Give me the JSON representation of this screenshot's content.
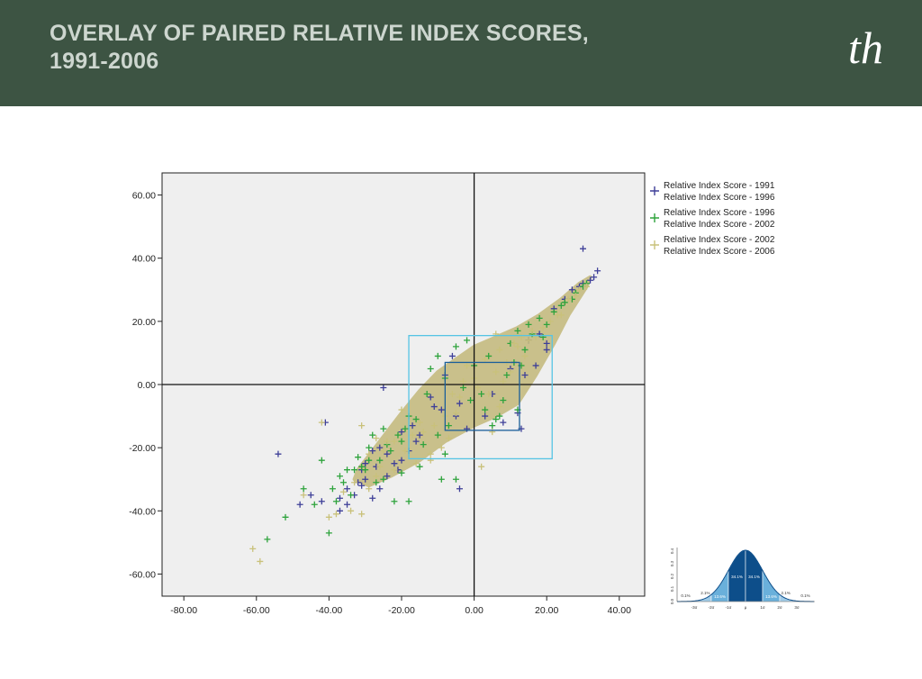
{
  "header": {
    "title_line1": "OVERLAY OF PAIRED RELATIVE INDEX SCORES,",
    "title_line2": "1991-2006",
    "logo_text": "th",
    "background": "#3d5443"
  },
  "chart_data": {
    "type": "scatter",
    "title": "",
    "xlabel": "",
    "ylabel": "",
    "xlim": [
      -86,
      47
    ],
    "ylim": [
      -67,
      67
    ],
    "xticks": [
      "-80.00",
      "-60.00",
      "-40.00",
      "-20.00",
      "0.00",
      "20.00",
      "40.00"
    ],
    "yticks": [
      "60.00",
      "40.00",
      "20.00",
      "0.00",
      "-20.00",
      "-40.00",
      "-60.00"
    ],
    "xtick_values": [
      -80,
      -60,
      -40,
      -20,
      0,
      20,
      40
    ],
    "ytick_values": [
      60,
      40,
      20,
      0,
      -20,
      -40,
      -60
    ],
    "grid": false,
    "background": "#efefef",
    "legend_position": "right-top",
    "series": [
      {
        "name_line1": "Relative Index Score - 1991",
        "name_line2": "Relative Index Score - 1996",
        "color": "#3e3f98",
        "marker": "plus",
        "points": [
          [
            30,
            43
          ],
          [
            34,
            36
          ],
          [
            33,
            34
          ],
          [
            30,
            32
          ],
          [
            -41,
            -12
          ],
          [
            -54,
            -22
          ],
          [
            -31,
            -27
          ],
          [
            -42,
            -37
          ],
          [
            -37,
            -40
          ],
          [
            -25,
            -1
          ],
          [
            -5,
            -10
          ],
          [
            -4,
            -33
          ],
          [
            -32,
            -31
          ],
          [
            -35,
            -33
          ],
          [
            -28,
            -36
          ],
          [
            -22,
            -25
          ],
          [
            -24,
            -22
          ],
          [
            -28,
            -21
          ],
          [
            -20,
            -24
          ],
          [
            18,
            16
          ],
          [
            15,
            14
          ],
          [
            20,
            13
          ],
          [
            -9,
            -8
          ],
          [
            -4,
            -6
          ],
          [
            -20,
            -15
          ],
          [
            -17,
            -13
          ],
          [
            -15,
            -16
          ],
          [
            22,
            24
          ],
          [
            25,
            27
          ],
          [
            27,
            30
          ],
          [
            -26,
            -20
          ],
          [
            -30,
            -30
          ],
          [
            -33,
            -35
          ],
          [
            -8,
            3
          ],
          [
            5,
            -3
          ],
          [
            3,
            -10
          ],
          [
            10,
            5
          ],
          [
            -11,
            -7
          ],
          [
            8,
            -12
          ],
          [
            12,
            -9
          ],
          [
            -27,
            -26
          ],
          [
            -24,
            -29
          ],
          [
            -18,
            -21
          ],
          [
            -26,
            -33
          ],
          [
            -45,
            -35
          ],
          [
            -48,
            -38
          ],
          [
            -30,
            -25
          ],
          [
            -16,
            -18
          ],
          [
            -2,
            -14
          ],
          [
            13,
            -14
          ],
          [
            17,
            6
          ],
          [
            14,
            3
          ],
          [
            20,
            11
          ],
          [
            29,
            31
          ],
          [
            32,
            33
          ],
          [
            -37,
            -36
          ],
          [
            -35,
            -38
          ],
          [
            -31,
            -32
          ],
          [
            -21,
            -27
          ],
          [
            -12,
            -4
          ],
          [
            -6,
            9
          ]
        ]
      },
      {
        "name_line1": "Relative Index Score - 1996",
        "name_line2": "Relative Index Score - 2002",
        "color": "#2ea33c",
        "marker": "plus",
        "points": [
          [
            -52,
            -42
          ],
          [
            -57,
            -49
          ],
          [
            -40,
            -47
          ],
          [
            -47,
            -33
          ],
          [
            -44,
            -38
          ],
          [
            -42,
            -24
          ],
          [
            -25,
            -14
          ],
          [
            -18,
            -10
          ],
          [
            -8,
            -22
          ],
          [
            -5,
            -30
          ],
          [
            -9,
            -30
          ],
          [
            -15,
            -26
          ],
          [
            -34,
            -35
          ],
          [
            -31,
            -26
          ],
          [
            -29,
            -24
          ],
          [
            -36,
            -31
          ],
          [
            -33,
            -27
          ],
          [
            -25,
            -30
          ],
          [
            -20,
            -28
          ],
          [
            -22,
            -37
          ],
          [
            -38,
            -37
          ],
          [
            -18,
            -37
          ],
          [
            3,
            -8
          ],
          [
            6,
            -11
          ],
          [
            5,
            -13
          ],
          [
            7,
            -10
          ],
          [
            12,
            -8
          ],
          [
            8,
            -5
          ],
          [
            -7,
            -13
          ],
          [
            -10,
            -16
          ],
          [
            -14,
            -19
          ],
          [
            -20,
            -18
          ],
          [
            -23,
            -21
          ],
          [
            -26,
            -24
          ],
          [
            -29,
            -20
          ],
          [
            -30,
            -27
          ],
          [
            -27,
            -31
          ],
          [
            -12,
            5
          ],
          [
            -10,
            9
          ],
          [
            -5,
            12
          ],
          [
            -2,
            14
          ],
          [
            10,
            13
          ],
          [
            12,
            17
          ],
          [
            15,
            19
          ],
          [
            18,
            21
          ],
          [
            22,
            23
          ],
          [
            24,
            25
          ],
          [
            27,
            27
          ],
          [
            28,
            29
          ],
          [
            30,
            31
          ],
          [
            31,
            32
          ],
          [
            20,
            19
          ],
          [
            16,
            16
          ],
          [
            14,
            11
          ],
          [
            11,
            7
          ],
          [
            -3,
            -1
          ],
          [
            2,
            -3
          ],
          [
            -1,
            -5
          ],
          [
            -16,
            -11
          ],
          [
            -19,
            -14
          ],
          [
            -21,
            -16
          ],
          [
            -24,
            -19
          ],
          [
            -32,
            -23
          ],
          [
            -35,
            -27
          ],
          [
            -28,
            -16
          ],
          [
            -13,
            -3
          ],
          [
            -8,
            2
          ],
          [
            0,
            6
          ],
          [
            4,
            9
          ],
          [
            9,
            3
          ],
          [
            13,
            6
          ],
          [
            19,
            15
          ],
          [
            25,
            26
          ],
          [
            -37,
            -29
          ],
          [
            -39,
            -33
          ]
        ]
      },
      {
        "name_line1": "Relative Index Score - 2002",
        "name_line2": "Relative Index Score - 2006",
        "color": "#c9c17a",
        "marker": "plus",
        "points": [
          [
            -61,
            -52
          ],
          [
            -59,
            -56
          ],
          [
            -40,
            -42
          ],
          [
            -38,
            -41
          ],
          [
            -47,
            -35
          ],
          [
            -34,
            -40
          ],
          [
            -31,
            -41
          ],
          [
            -42,
            -12
          ],
          [
            -31,
            -13
          ],
          [
            -27,
            -17
          ],
          [
            -29,
            -22
          ],
          [
            -24,
            -18
          ],
          [
            -20,
            -8
          ],
          [
            -15,
            -12
          ],
          [
            -9,
            -20
          ],
          [
            -12,
            -22
          ],
          [
            2,
            -26
          ],
          [
            -6,
            -3
          ],
          [
            -3,
            1
          ],
          [
            6,
            16
          ],
          [
            16,
            17
          ],
          [
            24,
            22
          ],
          [
            26,
            27
          ],
          [
            23,
            22
          ],
          [
            17,
            15
          ],
          [
            12,
            12
          ],
          [
            14,
            9
          ],
          [
            10,
            4
          ],
          [
            8,
            1
          ],
          [
            -5,
            -9
          ],
          [
            -11,
            -13
          ],
          [
            -17,
            -16
          ],
          [
            -22,
            -18
          ],
          [
            -25,
            -21
          ],
          [
            -26,
            -26
          ],
          [
            -33,
            -31
          ],
          [
            -36,
            -34
          ],
          [
            -29,
            -33
          ],
          [
            -27,
            -29
          ],
          [
            -22,
            -27
          ],
          [
            -16,
            -25
          ],
          [
            -12,
            -24
          ],
          [
            -7,
            -17
          ],
          [
            5,
            -15
          ],
          [
            7,
            -7
          ],
          [
            4,
            -3
          ],
          [
            0,
            2
          ],
          [
            -2,
            6
          ],
          [
            3,
            8
          ],
          [
            7,
            11
          ],
          [
            11,
            13
          ],
          [
            13,
            15
          ],
          [
            19,
            18
          ],
          [
            21,
            20
          ],
          [
            28,
            28
          ],
          [
            29,
            30
          ],
          [
            31,
            31
          ],
          [
            -19,
            -21
          ],
          [
            -14,
            -15
          ],
          [
            -8,
            -10
          ],
          [
            -4,
            -4
          ],
          [
            1,
            -1
          ],
          [
            6,
            4
          ],
          [
            9,
            7
          ],
          [
            15,
            14
          ]
        ]
      }
    ],
    "density_band": {
      "color": "#c8be86",
      "polygon": [
        [
          -29,
          -32
        ],
        [
          -23,
          -29
        ],
        [
          -15,
          -24
        ],
        [
          -8,
          -18
        ],
        [
          0,
          -13
        ],
        [
          6,
          -10
        ],
        [
          12,
          -6
        ],
        [
          17,
          3
        ],
        [
          22,
          13
        ],
        [
          26,
          22
        ],
        [
          31,
          31
        ],
        [
          32,
          34
        ],
        [
          29,
          32
        ],
        [
          24,
          27
        ],
        [
          18,
          22
        ],
        [
          12,
          18
        ],
        [
          6,
          15
        ],
        [
          0,
          12
        ],
        [
          -5,
          8
        ],
        [
          -10,
          4
        ],
        [
          -15,
          -2
        ],
        [
          -20,
          -9
        ],
        [
          -24,
          -15
        ],
        [
          -28,
          -21
        ],
        [
          -32,
          -27
        ],
        [
          -33,
          -30
        ]
      ]
    },
    "reference_lines": {
      "x": 0,
      "y": 0,
      "color": "#111111"
    },
    "boxes": [
      {
        "name": "inner-box",
        "x0": -8,
        "x1": 12.5,
        "y0": -14.5,
        "y1": 7,
        "color": "#1b5f9a"
      },
      {
        "name": "outer-box",
        "x0": -18,
        "x1": 21.5,
        "y0": -23.5,
        "y1": 15.5,
        "color": "#55c4e4"
      }
    ]
  },
  "normal_curve": {
    "percent_labels": [
      "0.1%",
      "2.1%",
      "13.6%",
      "34.1%",
      "34.1%",
      "13.6%",
      "2.1%",
      "0.1%"
    ],
    "axis_labels": [
      "-3σ",
      "-2σ",
      "-1σ",
      "μ",
      "1σ",
      "2σ",
      "3σ"
    ],
    "yaxis_labels": [
      "0.4",
      "0.3",
      "0.2",
      "0.1",
      "0.0"
    ],
    "colors": {
      "inner": "#0d4e8a",
      "mid": "#2e7fbe",
      "outer": "#6ab0db",
      "tail": "#9fcbe8"
    }
  }
}
